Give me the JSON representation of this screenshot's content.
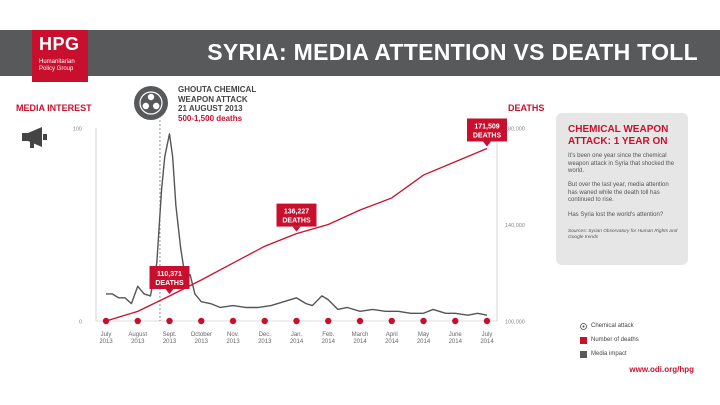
{
  "header": {
    "logo_text": "HPG",
    "logo_sub1": "Humanitarian",
    "logo_sub2": "Policy Group",
    "title": "SYRIA: MEDIA ATTENTION VS DEATH TOLL"
  },
  "axes": {
    "left_title": "MEDIA INTEREST",
    "right_title": "DEATHS"
  },
  "attack_annotation": {
    "line1": "GHOUTA CHEMICAL",
    "line2": "WEAPON ATTACK",
    "line3": "21 AUGUST 2013",
    "line4": "500-1,500 deaths"
  },
  "info_box": {
    "title_line1": "CHEMICAL WEAPON",
    "title_line2": "ATTACK: 1 YEAR ON",
    "p1": "It's been one year since the chemical weapon attack in Syria that shocked the world.",
    "p2": "But over the last year, media attention has waned while the death toll has continued to rise.",
    "p3": "Has Syria lost the world's attention?",
    "sources": "Sources: Syrian Observatory for Human Rights and Google trends"
  },
  "legend": {
    "chemical": "Chemical attack",
    "deaths": "Number of deaths",
    "media": "Media impact"
  },
  "footer": {
    "url": "www.odi.org/hpg"
  },
  "colors": {
    "red": "#c8102e",
    "dark": "#58595b",
    "grey_line": "#555555"
  },
  "chart_data": {
    "type": "line",
    "x_labels": [
      [
        "July",
        "2013"
      ],
      [
        "August",
        "2013"
      ],
      [
        "Sept.",
        "2013"
      ],
      [
        "October",
        "2013"
      ],
      [
        "Nov.",
        "2013"
      ],
      [
        "Dec.",
        "2013"
      ],
      [
        "Jan.",
        "2014"
      ],
      [
        "Feb.",
        "2014"
      ],
      [
        "March",
        "2014"
      ],
      [
        "April",
        "2014"
      ],
      [
        "May",
        "2014"
      ],
      [
        "June",
        "2014"
      ],
      [
        "July",
        "2014"
      ]
    ],
    "xlim": [
      0,
      12
    ],
    "left_axis": {
      "ticks": [
        "0",
        "100"
      ],
      "ylim": [
        0,
        100
      ]
    },
    "right_axis": {
      "ticks": [
        "100,000",
        "140,000",
        "180,000"
      ],
      "ylim": [
        100000,
        180000
      ]
    },
    "series": [
      {
        "name": "Number of deaths",
        "axis": "right",
        "x": [
          0,
          1,
          2,
          3,
          4,
          5,
          6,
          7,
          8,
          9,
          10,
          11,
          12
        ],
        "values": [
          100000,
          104000,
          110371,
          117000,
          124000,
          131000,
          136227,
          140000,
          146000,
          151000,
          160500,
          166000,
          171509
        ]
      },
      {
        "name": "Media impact",
        "axis": "left",
        "x": [
          0,
          0.2,
          0.4,
          0.6,
          0.8,
          1.0,
          1.2,
          1.4,
          1.6,
          1.75,
          1.85,
          2.0,
          2.1,
          2.2,
          2.35,
          2.5,
          2.65,
          2.8,
          3.0,
          3.3,
          3.6,
          4.0,
          4.4,
          4.8,
          5.2,
          5.6,
          6.0,
          6.3,
          6.5,
          6.8,
          7.0,
          7.3,
          7.6,
          8.0,
          8.4,
          8.8,
          9.2,
          9.6,
          10.0,
          10.3,
          10.7,
          11.0,
          11.4,
          11.7,
          12.0
        ],
        "values": [
          14,
          14,
          12,
          12,
          9,
          18,
          14,
          13,
          30,
          68,
          85,
          97,
          85,
          60,
          38,
          22,
          24,
          14,
          10,
          9,
          7,
          8,
          7,
          7,
          8,
          10,
          12,
          9,
          8,
          13,
          11,
          6,
          7,
          5,
          6,
          5,
          5,
          4,
          4,
          6,
          4,
          4,
          3,
          4,
          3
        ]
      }
    ],
    "annotations": [
      {
        "value_label": "110,371",
        "label": "DEATHS",
        "x": 2,
        "y": 110371
      },
      {
        "value_label": "136,227",
        "label": "DEATHS",
        "x": 6,
        "y": 136227
      },
      {
        "value_label": "171,509",
        "label": "DEATHS",
        "x": 12,
        "y": 171509
      }
    ],
    "chemical_attack_x": 1.7
  }
}
